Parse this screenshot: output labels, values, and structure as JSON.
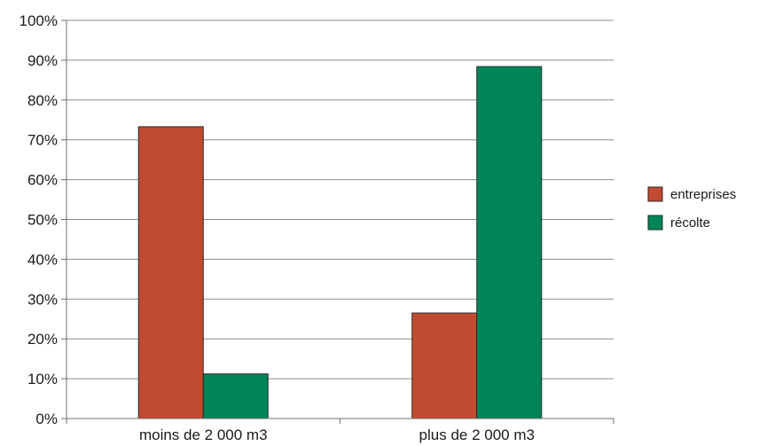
{
  "chart_data": {
    "type": "bar",
    "title": "",
    "xlabel": "",
    "ylabel": "",
    "categories": [
      "moins de 2 000 m3",
      "plus de 2 000 m3"
    ],
    "series": [
      {
        "name": "entreprises",
        "values": [
          73.3,
          26.5
        ],
        "color": "#c04b30"
      },
      {
        "name": "récolte",
        "values": [
          11.2,
          88.4
        ],
        "color": "#008558"
      }
    ],
    "ylim": [
      0,
      100
    ],
    "yticks": [
      0,
      10,
      20,
      30,
      40,
      50,
      60,
      70,
      80,
      90,
      100
    ],
    "ytick_labels": [
      "0%",
      "10%",
      "20%",
      "30%",
      "40%",
      "50%",
      "60%",
      "70%",
      "80%",
      "90%",
      "100%"
    ],
    "grid": true,
    "legend_position": "right"
  }
}
